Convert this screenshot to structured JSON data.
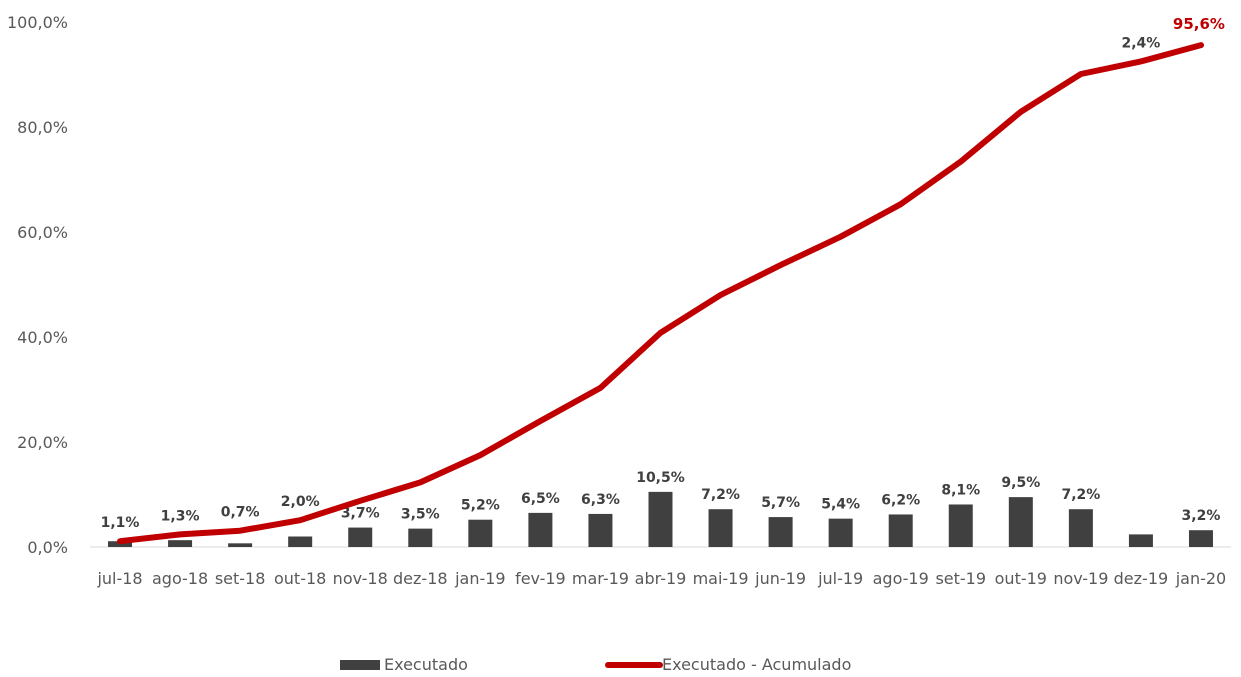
{
  "chart_data": {
    "type": "bar",
    "categories": [
      "jul-18",
      "ago-18",
      "set-18",
      "out-18",
      "nov-18",
      "dez-18",
      "jan-19",
      "fev-19",
      "mar-19",
      "abr-19",
      "mai-19",
      "jun-19",
      "jul-19",
      "ago-19",
      "set-19",
      "out-19",
      "nov-19",
      "dez-19",
      "jan-20"
    ],
    "series": [
      {
        "name": "Executado",
        "type": "bar",
        "color": "#404040",
        "values": [
          1.1,
          1.3,
          0.7,
          2.0,
          3.7,
          3.5,
          5.2,
          6.5,
          6.3,
          10.5,
          7.2,
          5.7,
          5.4,
          6.2,
          8.1,
          9.5,
          7.2,
          2.4,
          3.2
        ],
        "labels": [
          "1,1%",
          "1,3%",
          "0,7%",
          "2,0%",
          "3,7%",
          "3,5%",
          "5,2%",
          "6,5%",
          "6,3%",
          "10,5%",
          "7,2%",
          "5,7%",
          "5,4%",
          "6,2%",
          "8,1%",
          "9,5%",
          "7,2%",
          "2,4%",
          "3,2%"
        ]
      },
      {
        "name": "Executado - Acumulado",
        "type": "line",
        "color": "#C00000",
        "values": [
          1.1,
          2.4,
          3.1,
          5.1,
          8.8,
          12.3,
          17.5,
          24.0,
          30.3,
          40.8,
          48.0,
          53.7,
          59.1,
          65.3,
          73.4,
          82.9,
          90.1,
          92.5,
          95.6
        ],
        "end_label": "95,6%"
      }
    ],
    "y_ticks": [
      "0,0%",
      "20,0%",
      "40,0%",
      "60,0%",
      "80,0%",
      "100,0%"
    ],
    "y_tick_values": [
      0,
      20,
      40,
      60,
      80,
      100
    ],
    "ylim": [
      0,
      100
    ],
    "legend_position": "bottom",
    "grid": false
  }
}
